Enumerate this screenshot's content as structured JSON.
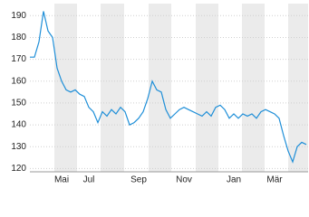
{
  "chart_data": {
    "type": "line",
    "categories": [
      "",
      null,
      null,
      null,
      null,
      null,
      null,
      "Mai",
      null,
      null,
      null,
      null,
      null,
      "Jul",
      null,
      null,
      null,
      null,
      null,
      null,
      null,
      null,
      null,
      null,
      "Sep",
      null,
      null,
      null,
      null,
      null,
      null,
      null,
      null,
      null,
      "Nov",
      null,
      null,
      null,
      null,
      null,
      null,
      null,
      null,
      null,
      null,
      "Jan",
      null,
      null,
      null,
      null,
      null,
      null,
      null,
      null,
      "Mär",
      null,
      null,
      null,
      null,
      null,
      null,
      null
    ],
    "series": [
      {
        "color": "#1f8fd8",
        "values": [
          171,
          171,
          178,
          192,
          183,
          180,
          166,
          160,
          156,
          155,
          156,
          154,
          153,
          148,
          146,
          141,
          146,
          144,
          147,
          145,
          148,
          146,
          140,
          141,
          143,
          146,
          152,
          160,
          156,
          155,
          147,
          143,
          145,
          147,
          148,
          147,
          146,
          145,
          144,
          146,
          144,
          148,
          149,
          147,
          143,
          145,
          143,
          145,
          144,
          145,
          143,
          146,
          147,
          146,
          145,
          143,
          135,
          128,
          123,
          130,
          132,
          131
        ]
      }
    ],
    "ylim": [
      118.5,
      195.5
    ],
    "yticks": [
      120,
      130,
      140,
      150,
      160,
      170,
      180,
      190
    ],
    "grid": true
  }
}
